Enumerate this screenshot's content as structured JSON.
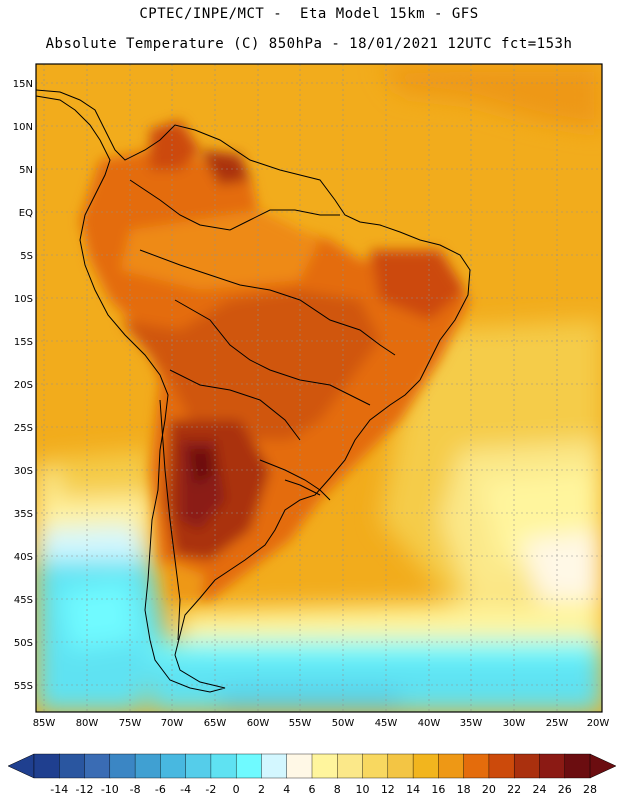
{
  "title": {
    "line1": "CPTEC/INPE/MCT -  Eta Model 15km - GFS",
    "line2": "Absolute Temperature (C) 850hPa - 18/01/2021 12UTC fct=153h"
  },
  "map": {
    "lat_labels": [
      "15N",
      "10N",
      "5N",
      "EQ",
      "5S",
      "10S",
      "15S",
      "20S",
      "25S",
      "30S",
      "35S",
      "40S",
      "45S",
      "50S",
      "55S"
    ],
    "lon_labels": [
      "85W",
      "80W",
      "75W",
      "70W",
      "65W",
      "60W",
      "55W",
      "50W",
      "45W",
      "40W",
      "35W",
      "30W",
      "25W",
      "20W"
    ]
  },
  "colorbar": {
    "labels": [
      "-14",
      "-12",
      "-10",
      "-8",
      "-6",
      "-4",
      "-2",
      "0",
      "2",
      "4",
      "6",
      "8",
      "10",
      "12",
      "14",
      "16",
      "18",
      "20",
      "22",
      "24",
      "26",
      "28"
    ],
    "colors": [
      "#1f3f8f",
      "#2a56a0",
      "#3a6cb4",
      "#3b86c4",
      "#40a0d2",
      "#48b8e0",
      "#55cdea",
      "#5fe2f2",
      "#6ffaff",
      "#d3f7ff",
      "#fff8e6",
      "#fff59d",
      "#fbe889",
      "#f8d860",
      "#f3c544",
      "#f2b51e",
      "#ee9815",
      "#e46c0c",
      "#cc4a0b",
      "#aa300e",
      "#8b1a14",
      "#6b0d10"
    ]
  }
}
